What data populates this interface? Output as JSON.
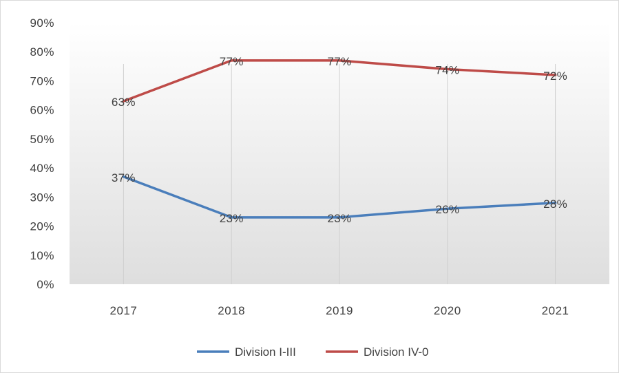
{
  "chart_data": {
    "type": "line",
    "title": "",
    "xlabel": "",
    "ylabel": "",
    "categories": [
      "2017",
      "2018",
      "2019",
      "2020",
      "2021"
    ],
    "ylim": [
      0,
      90
    ],
    "yticks": [
      "0%",
      "10%",
      "20%",
      "30%",
      "40%",
      "50%",
      "60%",
      "70%",
      "80%",
      "90%"
    ],
    "grid": "vertical",
    "legend": "bottom",
    "series": [
      {
        "name": "Division I-III",
        "values": [
          37,
          23,
          23,
          26,
          28
        ],
        "labels": [
          "37%",
          "23%",
          "23%",
          "26%",
          "28%"
        ],
        "color": "#4a7ebb"
      },
      {
        "name": "Division IV-0",
        "values": [
          63,
          77,
          77,
          74,
          72
        ],
        "labels": [
          "63%",
          "77%",
          "77%",
          "74%",
          "72%"
        ],
        "color": "#be4b48"
      }
    ]
  }
}
